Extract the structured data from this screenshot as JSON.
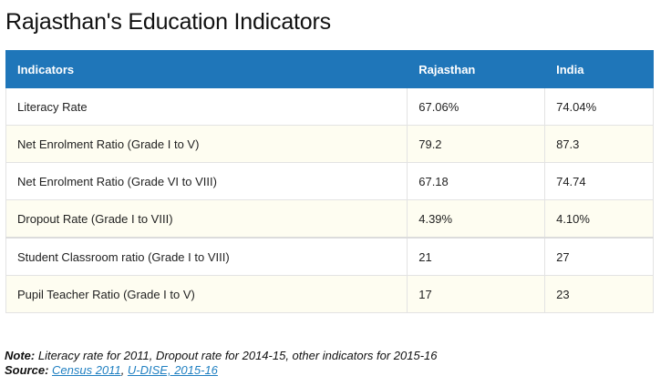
{
  "title": "Rajasthan's Education Indicators",
  "table": {
    "headers": [
      "Indicators",
      "Rajasthan",
      "India"
    ],
    "rows": [
      [
        "Literacy Rate",
        "67.06%",
        "74.04%"
      ],
      [
        "Net Enrolment Ratio (Grade I to V)",
        "79.2",
        "87.3"
      ],
      [
        "Net Enrolment Ratio (Grade VI to VIII)",
        "67.18",
        "74.74"
      ],
      [
        "Dropout Rate (Grade I to VIII)",
        "4.39%",
        "4.10%"
      ],
      [
        "Student Classroom ratio (Grade I to VIII)",
        "21",
        "27"
      ],
      [
        "Pupil Teacher Ratio (Grade I to V)",
        "17",
        "23"
      ]
    ]
  },
  "note": {
    "label": "Note:",
    "text": "Literacy rate for 2011, Dropout rate for 2014-15, other indicators for 2015-16"
  },
  "source": {
    "label": "Source:",
    "links": [
      "Census 2011",
      "U-DISE, 2015-16"
    ],
    "separator": ", "
  },
  "colors": {
    "header_bg": "#1f76b9",
    "header_text": "#ffffff",
    "alt_row_bg": "#fefdf1",
    "link": "#1f7fc1"
  }
}
